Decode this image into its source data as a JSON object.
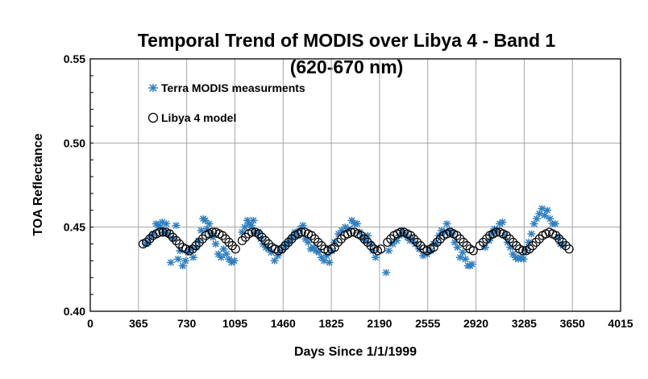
{
  "chart_data": {
    "type": "scatter",
    "title_line1": "Temporal Trend of MODIS over Libya 4 - Band 1",
    "title_line2": "(620-670 nm)",
    "xlabel": "Days Since 1/1/1999",
    "ylabel": "TOA Reflectance",
    "xlim": [
      0,
      4015
    ],
    "ylim": [
      0.4,
      0.55
    ],
    "x_ticks": [
      0,
      365,
      730,
      1095,
      1460,
      1825,
      2190,
      2555,
      2920,
      3285,
      3650,
      4015
    ],
    "y_ticks": [
      0.4,
      0.45,
      0.5,
      0.55
    ],
    "y_tick_labels": [
      "0.40",
      "0.45",
      "0.50",
      "0.55"
    ],
    "x_gridlines": true,
    "y_gridlines": true,
    "legend_position": "top-left",
    "colors": {
      "measurements": "#2e7fc1",
      "model": "#000000"
    },
    "series": [
      {
        "name": "Terra MODIS measurments",
        "marker": "asterisk",
        "x": [
          420,
          440,
          460,
          480,
          500,
          515,
          530,
          545,
          560,
          575,
          590,
          610,
          630,
          650,
          665,
          680,
          700,
          720,
          740,
          760,
          780,
          800,
          820,
          840,
          855,
          870,
          885,
          900,
          915,
          930,
          950,
          970,
          990,
          1010,
          1030,
          1050,
          1070,
          1090,
          1150,
          1170,
          1190,
          1205,
          1220,
          1235,
          1250,
          1270,
          1290,
          1310,
          1330,
          1350,
          1370,
          1395,
          1420,
          1445,
          1470,
          1490,
          1510,
          1530,
          1550,
          1570,
          1590,
          1610,
          1630,
          1650,
          1670,
          1690,
          1710,
          1730,
          1750,
          1770,
          1790,
          1810,
          1830,
          1850,
          1880,
          1905,
          1930,
          1955,
          1980,
          2000,
          2020,
          2040,
          2060,
          2080,
          2100,
          2120,
          2140,
          2160,
          2240,
          2260,
          2290,
          2320,
          2340,
          2360,
          2380,
          2400,
          2420,
          2440,
          2460,
          2490,
          2520,
          2550,
          2580,
          2600,
          2620,
          2640,
          2660,
          2680,
          2700,
          2720,
          2740,
          2760,
          2780,
          2800,
          2820,
          2840,
          2860,
          2875,
          2890,
          2990,
          3020,
          3040,
          3060,
          3080,
          3100,
          3120,
          3140,
          3160,
          3180,
          3200,
          3220,
          3240,
          3260,
          3280,
          3300,
          3320,
          3340,
          3360,
          3380,
          3400,
          3420,
          3440,
          3460,
          3480,
          3500,
          3520,
          3540,
          3560,
          3580
        ],
        "y": [
          0.44,
          0.441,
          0.444,
          0.446,
          0.452,
          0.451,
          0.45,
          0.453,
          0.447,
          0.452,
          0.446,
          0.429,
          0.443,
          0.451,
          0.431,
          0.436,
          0.427,
          0.43,
          0.435,
          0.437,
          0.432,
          0.438,
          0.442,
          0.448,
          0.455,
          0.454,
          0.449,
          0.452,
          0.446,
          0.444,
          0.44,
          0.434,
          0.432,
          0.437,
          0.434,
          0.431,
          0.429,
          0.43,
          0.447,
          0.45,
          0.454,
          0.452,
          0.451,
          0.454,
          0.447,
          0.447,
          0.443,
          0.44,
          0.438,
          0.437,
          0.435,
          0.43,
          0.433,
          0.436,
          0.439,
          0.44,
          0.442,
          0.444,
          0.447,
          0.445,
          0.449,
          0.451,
          0.443,
          0.441,
          0.437,
          0.438,
          0.436,
          0.435,
          0.432,
          0.43,
          0.433,
          0.429,
          0.436,
          0.441,
          0.446,
          0.448,
          0.45,
          0.449,
          0.454,
          0.452,
          0.452,
          0.447,
          0.444,
          0.442,
          0.445,
          0.44,
          0.436,
          0.432,
          0.423,
          0.436,
          0.44,
          0.442,
          0.445,
          0.448,
          0.446,
          0.444,
          0.442,
          0.443,
          0.44,
          0.437,
          0.433,
          0.434,
          0.436,
          0.44,
          0.441,
          0.445,
          0.448,
          0.447,
          0.452,
          0.448,
          0.446,
          0.441,
          0.438,
          0.432,
          0.435,
          0.431,
          0.427,
          0.427,
          0.428,
          0.438,
          0.442,
          0.446,
          0.449,
          0.448,
          0.452,
          0.453,
          0.445,
          0.441,
          0.438,
          0.434,
          0.432,
          0.431,
          0.432,
          0.431,
          0.436,
          0.441,
          0.446,
          0.452,
          0.455,
          0.458,
          0.461,
          0.457,
          0.46,
          0.455,
          0.452,
          0.452,
          0.444,
          0.44,
          0.439
        ]
      },
      {
        "name": "Libya 4 model",
        "marker": "circle",
        "x": [
          400,
          425,
          450,
          475,
          500,
          525,
          550,
          575,
          600,
          625,
          650,
          675,
          700,
          725,
          750,
          775,
          800,
          825,
          850,
          875,
          900,
          925,
          950,
          975,
          1000,
          1025,
          1050,
          1075,
          1100,
          1150,
          1175,
          1200,
          1225,
          1250,
          1275,
          1300,
          1325,
          1350,
          1375,
          1400,
          1425,
          1450,
          1475,
          1500,
          1525,
          1550,
          1575,
          1600,
          1625,
          1650,
          1675,
          1700,
          1725,
          1750,
          1775,
          1800,
          1825,
          1850,
          1875,
          1900,
          1925,
          1950,
          1975,
          2000,
          2025,
          2050,
          2075,
          2100,
          2125,
          2150,
          2175,
          2200,
          2250,
          2275,
          2300,
          2325,
          2350,
          2375,
          2400,
          2425,
          2450,
          2475,
          2500,
          2525,
          2550,
          2575,
          2600,
          2625,
          2650,
          2675,
          2700,
          2725,
          2750,
          2775,
          2800,
          2825,
          2850,
          2875,
          2900,
          2950,
          2975,
          3000,
          3025,
          3050,
          3075,
          3100,
          3125,
          3150,
          3175,
          3200,
          3225,
          3250,
          3275,
          3300,
          3325,
          3350,
          3375,
          3400,
          3425,
          3450,
          3475,
          3500,
          3525,
          3550,
          3575,
          3600,
          3625
        ],
        "y": [
          0.44,
          0.441,
          0.443,
          0.445,
          0.446,
          0.447,
          0.447,
          0.447,
          0.446,
          0.444,
          0.442,
          0.44,
          0.438,
          0.437,
          0.436,
          0.437,
          0.439,
          0.441,
          0.443,
          0.445,
          0.446,
          0.447,
          0.447,
          0.446,
          0.445,
          0.443,
          0.441,
          0.439,
          0.437,
          0.442,
          0.444,
          0.446,
          0.447,
          0.447,
          0.446,
          0.444,
          0.442,
          0.44,
          0.438,
          0.437,
          0.436,
          0.437,
          0.439,
          0.441,
          0.443,
          0.445,
          0.446,
          0.447,
          0.447,
          0.446,
          0.445,
          0.443,
          0.441,
          0.439,
          0.437,
          0.436,
          0.437,
          0.438,
          0.441,
          0.443,
          0.445,
          0.446,
          0.447,
          0.447,
          0.446,
          0.445,
          0.443,
          0.441,
          0.439,
          0.437,
          0.436,
          0.437,
          0.441,
          0.443,
          0.445,
          0.446,
          0.447,
          0.447,
          0.446,
          0.445,
          0.443,
          0.441,
          0.439,
          0.437,
          0.436,
          0.437,
          0.438,
          0.441,
          0.443,
          0.445,
          0.446,
          0.447,
          0.446,
          0.445,
          0.443,
          0.441,
          0.439,
          0.437,
          0.436,
          0.439,
          0.441,
          0.443,
          0.445,
          0.446,
          0.447,
          0.447,
          0.446,
          0.445,
          0.443,
          0.441,
          0.439,
          0.437,
          0.436,
          0.436,
          0.437,
          0.439,
          0.441,
          0.443,
          0.445,
          0.446,
          0.447,
          0.446,
          0.445,
          0.443,
          0.441,
          0.439,
          0.437
        ]
      }
    ]
  }
}
